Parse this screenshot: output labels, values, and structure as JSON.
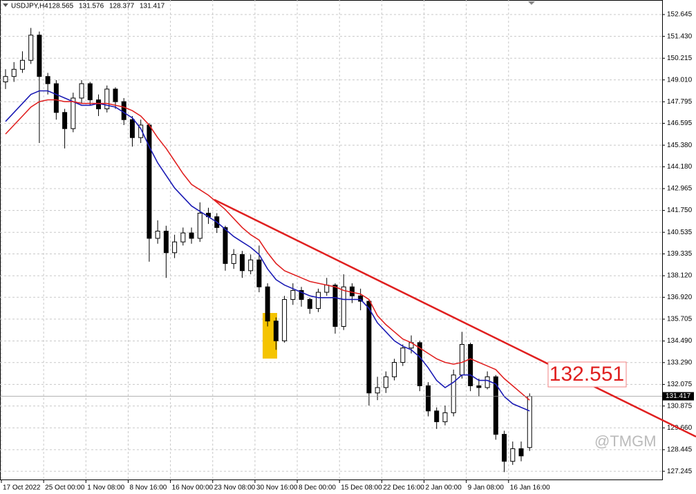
{
  "chart_data": {
    "type": "candlestick",
    "title": "USDJPY,H4",
    "watermark": "@TMGM",
    "annotation": "132.551",
    "categories": [
      "17 Oct 2022",
      null,
      null,
      null,
      null,
      "25 Oct 00:00",
      null,
      null,
      null,
      null,
      "1 Nov 08:00",
      null,
      null,
      null,
      null,
      "8 Nov 16:00",
      null,
      null,
      null,
      null,
      "16 Nov 00:00",
      null,
      null,
      null,
      null,
      "23 Nov 08:00",
      null,
      null,
      null,
      null,
      "30 Nov 16:00",
      null,
      null,
      null,
      null,
      "8 Dec 00:00",
      null,
      null,
      null,
      null,
      "15 Dec 08:00",
      null,
      null,
      null,
      null,
      "22 Dec 16:00",
      null,
      null,
      null,
      null,
      "2 Jan 00:00",
      null,
      null,
      null,
      null,
      "9 Jan 08:00",
      null,
      null,
      null,
      null,
      "16 Jan 16:00",
      null,
      null
    ],
    "open": [
      148.9,
      149.2,
      149.6,
      150.1,
      151.5,
      149.2,
      148.8,
      147.2,
      146.3,
      148.0,
      148.8,
      147.9,
      147.4,
      148.5,
      147.8,
      146.8,
      145.8,
      146.5,
      140.2,
      140.6,
      139.4,
      140.0,
      140.5,
      140.2,
      141.6,
      141.4,
      140.8,
      138.8,
      139.3,
      138.4,
      139.0,
      137.5,
      135.6,
      134.5,
      136.8,
      137.3,
      136.8,
      136.3,
      137.2,
      137.6,
      135.3,
      137.5,
      137.0,
      136.7,
      131.6,
      131.9,
      132.5,
      133.3,
      134.1,
      134.4,
      132.0,
      130.6,
      130.0,
      130.5,
      132.6,
      134.3,
      132.0,
      131.9,
      132.5,
      129.3,
      127.8,
      128.5,
      128.565
    ],
    "high": [
      149.6,
      150.0,
      150.6,
      151.9,
      151.7,
      149.4,
      149.0,
      147.4,
      148.3,
      149.0,
      148.9,
      148.2,
      148.7,
      148.6,
      148.0,
      147.0,
      146.8,
      146.6,
      141.2,
      140.9,
      140.4,
      140.8,
      140.8,
      142.2,
      141.9,
      141.6,
      140.9,
      139.6,
      139.5,
      139.3,
      139.8,
      137.7,
      135.8,
      137.0,
      137.7,
      137.5,
      136.9,
      137.4,
      138.0,
      137.7,
      138.2,
      137.7,
      137.4,
      136.8,
      132.5,
      132.8,
      133.5,
      134.3,
      134.8,
      134.5,
      132.2,
      130.8,
      130.9,
      132.9,
      135.0,
      134.4,
      132.4,
      132.8,
      132.6,
      129.5,
      128.9,
      128.9,
      131.576
    ],
    "low": [
      148.5,
      148.9,
      149.4,
      149.9,
      145.5,
      148.2,
      146.8,
      145.2,
      146.1,
      147.7,
      147.6,
      147.0,
      147.2,
      147.4,
      146.5,
      145.3,
      145.5,
      138.9,
      139.9,
      138.0,
      139.1,
      139.8,
      139.9,
      140.0,
      141.0,
      140.5,
      138.4,
      138.5,
      138.0,
      138.2,
      137.2,
      135.3,
      134.0,
      134.4,
      136.5,
      136.4,
      136.0,
      136.1,
      137.0,
      134.9,
      135.1,
      136.6,
      136.2,
      130.9,
      131.2,
      131.6,
      132.3,
      133.1,
      133.8,
      131.7,
      130.3,
      129.6,
      129.8,
      130.3,
      132.4,
      131.7,
      131.4,
      131.8,
      129.0,
      127.2,
      127.6,
      127.8,
      128.377
    ],
    "close": [
      149.2,
      149.6,
      150.1,
      151.5,
      149.2,
      148.8,
      147.2,
      146.3,
      148.0,
      148.8,
      147.9,
      147.4,
      148.5,
      147.8,
      146.8,
      145.8,
      146.5,
      140.2,
      140.6,
      139.4,
      140.0,
      140.5,
      140.2,
      141.6,
      141.4,
      140.8,
      138.8,
      139.3,
      138.4,
      139.0,
      137.5,
      135.6,
      134.5,
      136.8,
      137.3,
      136.8,
      136.3,
      137.2,
      137.6,
      135.3,
      137.5,
      137.0,
      136.7,
      131.6,
      131.9,
      132.5,
      133.3,
      134.1,
      134.4,
      132.0,
      130.6,
      130.0,
      130.5,
      132.6,
      134.3,
      132.0,
      131.9,
      132.5,
      129.3,
      127.8,
      128.5,
      128.1,
      131.417
    ],
    "ma_lines": [
      {
        "color": "#1a1ab4",
        "values": [
          146.7,
          147.2,
          147.7,
          148.2,
          148.4,
          148.4,
          148.2,
          148.0,
          147.8,
          147.6,
          147.6,
          147.7,
          147.6,
          147.5,
          147.2,
          146.9,
          146.3,
          145.3,
          144.4,
          143.7,
          143.0,
          142.5,
          142.0,
          141.7,
          141.4,
          141.1,
          140.7,
          140.3,
          140.0,
          139.7,
          139.3,
          138.5,
          137.9,
          137.6,
          137.4,
          137.2,
          137.0,
          136.9,
          136.9,
          136.9,
          136.8,
          136.8,
          136.8,
          136.3,
          135.5,
          135.0,
          134.5,
          134.2,
          134.0,
          133.6,
          133.0,
          132.3,
          131.9,
          132.2,
          132.6,
          132.6,
          132.3,
          132.3,
          132.1,
          131.4,
          131.0,
          130.8,
          130.6
        ]
      },
      {
        "color": "#e02020",
        "values": [
          146.0,
          146.5,
          147.0,
          147.5,
          147.8,
          147.9,
          147.9,
          147.8,
          147.8,
          147.7,
          147.7,
          147.7,
          147.7,
          147.6,
          147.5,
          147.3,
          147.0,
          146.5,
          145.8,
          145.2,
          144.5,
          143.8,
          143.2,
          142.9,
          142.6,
          142.2,
          141.8,
          141.3,
          140.8,
          140.4,
          140.1,
          139.4,
          138.8,
          138.4,
          138.2,
          138.0,
          137.8,
          137.7,
          137.6,
          137.5,
          137.3,
          137.2,
          137.1,
          136.8,
          135.9,
          135.4,
          135.0,
          134.6,
          134.4,
          134.1,
          133.8,
          133.5,
          133.3,
          133.2,
          133.3,
          133.5,
          133.3,
          133.1,
          132.9,
          132.4,
          132.0,
          131.6,
          131.2
        ]
      }
    ],
    "ylim": [
      126.75,
      153.3
    ],
    "yticks": [
      152.645,
      {
        "value": 151.43,
        "label": "151.430"
      },
      150.215,
      {
        "value": 149.01,
        "label": "149.010"
      },
      147.795,
      146.595,
      {
        "value": 145.38,
        "label": "145.380"
      },
      {
        "value": 144.18,
        "label": "144.180"
      },
      142.965,
      {
        "value": 141.75,
        "label": "141.750"
      },
      140.535,
      139.335,
      {
        "value": 138.12,
        "label": "138.120"
      },
      {
        "value": 136.92,
        "label": "136.920"
      },
      135.705,
      {
        "value": 134.49,
        "label": "134.490"
      },
      {
        "value": 133.29,
        "label": "133.290"
      },
      132.075,
      130.875,
      {
        "value": 129.66,
        "label": "129.660"
      },
      128.445,
      127.245
    ],
    "grid": true
  }
}
